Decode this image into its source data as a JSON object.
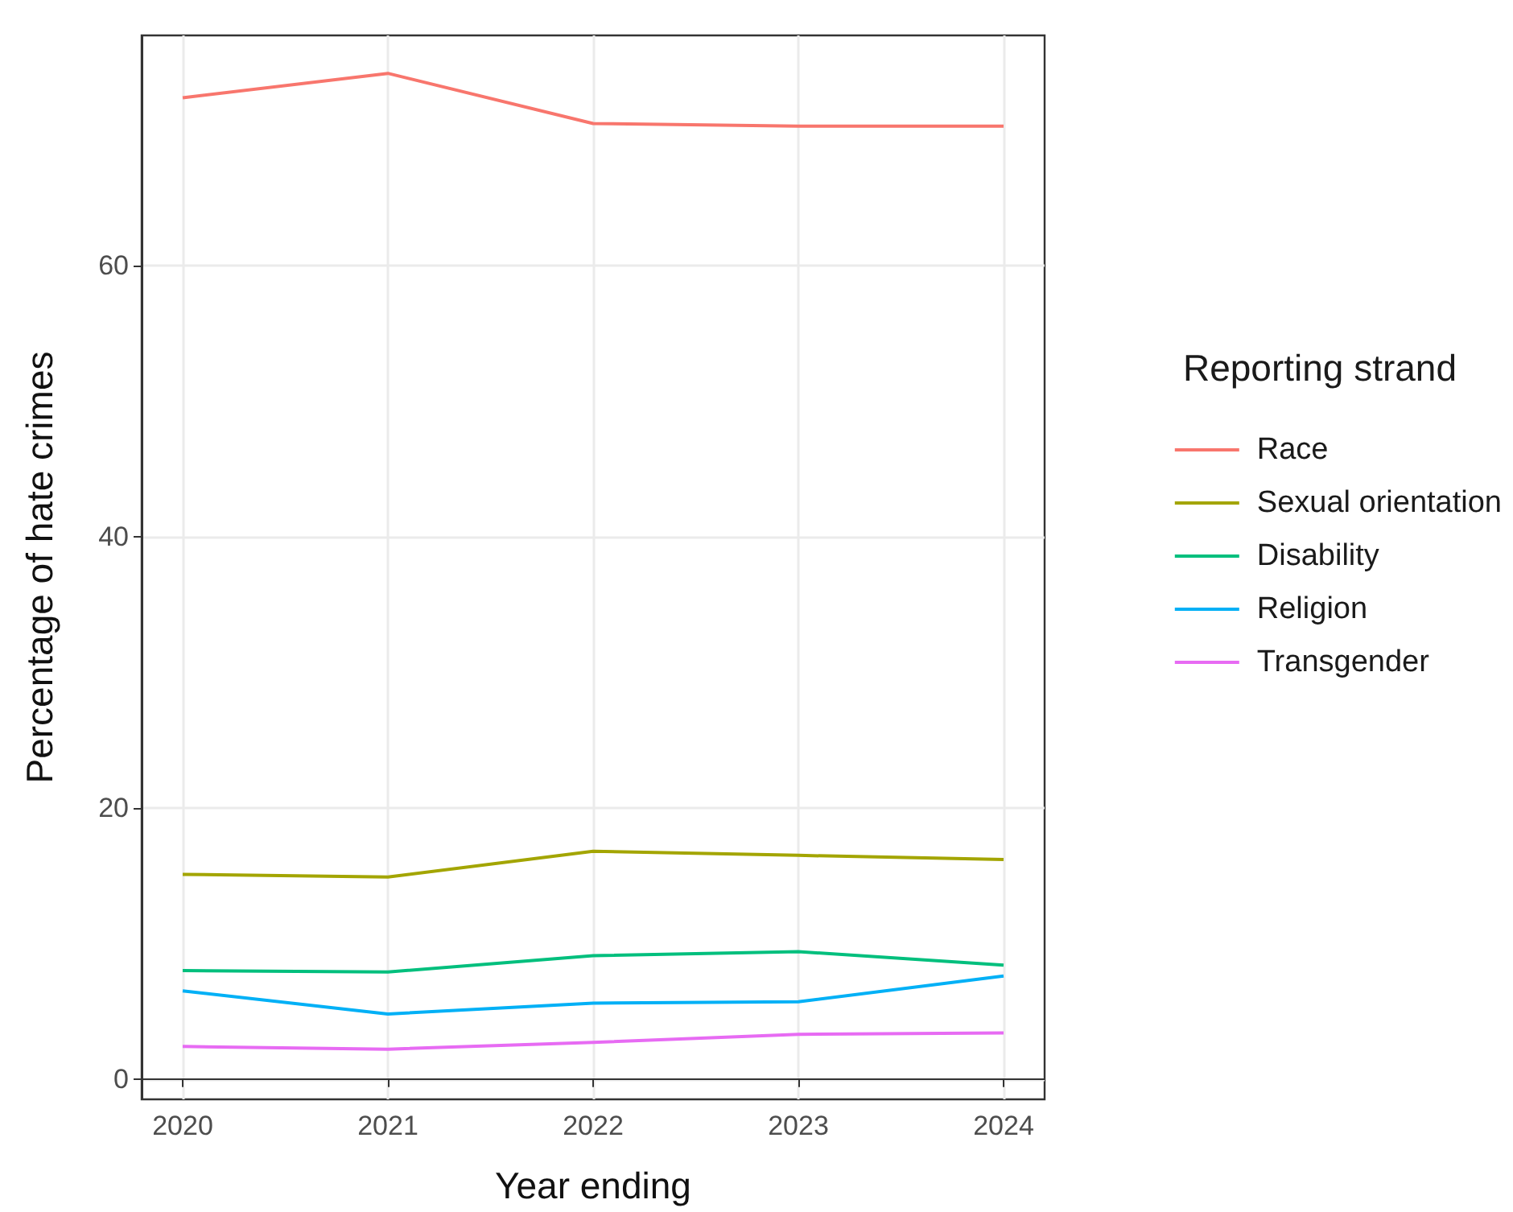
{
  "chart_data": {
    "type": "line",
    "xlabel": "Year ending",
    "ylabel": "Percentage of hate crimes",
    "legend_title": "Reporting strand",
    "x": [
      2020,
      2021,
      2022,
      2023,
      2024
    ],
    "series": [
      {
        "name": "Race",
        "color": "#f8766d",
        "values": [
          72.4,
          74.2,
          70.5,
          70.3,
          70.3
        ]
      },
      {
        "name": "Sexual orientation",
        "color": "#a3a500",
        "values": [
          15.1,
          14.9,
          16.8,
          16.5,
          16.2
        ]
      },
      {
        "name": "Disability",
        "color": "#00bf7d",
        "values": [
          8.0,
          7.9,
          9.1,
          9.4,
          8.4
        ]
      },
      {
        "name": "Religion",
        "color": "#00b0f6",
        "values": [
          6.5,
          4.8,
          5.6,
          5.7,
          7.6
        ]
      },
      {
        "name": "Transgender",
        "color": "#e76bf3",
        "values": [
          2.4,
          2.2,
          2.7,
          3.3,
          3.4
        ]
      }
    ],
    "xlim": [
      2019.8,
      2024.2
    ],
    "xticks": [
      2020,
      2021,
      2022,
      2023,
      2024
    ],
    "ylim": [
      -1.5,
      77
    ],
    "yticks": [
      0,
      20,
      40,
      60
    ],
    "grid": true,
    "legend": "right",
    "marker": "none",
    "line_style": "solid"
  }
}
